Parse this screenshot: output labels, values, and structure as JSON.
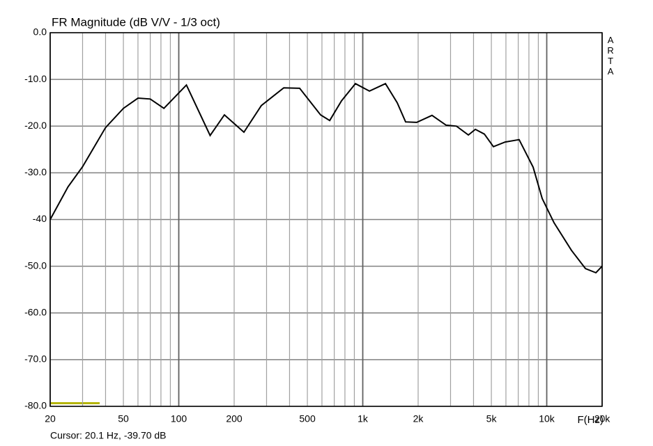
{
  "chart_data": {
    "type": "line",
    "title": "FR Magnitude (dB V/V - 1/3 oct)",
    "xlabel": "F(Hz)",
    "watermark": "ARTA",
    "cursor_text": "Cursor: 20.1 Hz, -39.70 dB",
    "log_x": true,
    "grid": true,
    "xlim": [
      20,
      20000
    ],
    "ylim": [
      -80,
      0
    ],
    "yticks": [
      {
        "value": 0,
        "label": "0.0"
      },
      {
        "value": -10,
        "label": "-10.0"
      },
      {
        "value": -20,
        "label": "-20.0"
      },
      {
        "value": -30,
        "label": "-30.0"
      },
      {
        "value": -40,
        "label": "-40"
      },
      {
        "value": -50,
        "label": "-50.0"
      },
      {
        "value": -60,
        "label": "-60.0"
      },
      {
        "value": -70,
        "label": "-70.0"
      },
      {
        "value": -80,
        "label": "-80.0"
      }
    ],
    "xticks": [
      20,
      {
        "value": 30,
        "label": null
      },
      {
        "value": 40,
        "label": null
      },
      50,
      {
        "value": 60,
        "label": null
      },
      {
        "value": 70,
        "label": null
      },
      {
        "value": 80,
        "label": null
      },
      {
        "value": 90,
        "label": null
      },
      100,
      200,
      {
        "value": 300,
        "label": null
      },
      {
        "value": 400,
        "label": null
      },
      500,
      {
        "value": 600,
        "label": null
      },
      {
        "value": 700,
        "label": null
      },
      {
        "value": 800,
        "label": null
      },
      {
        "value": 900,
        "label": null
      },
      {
        "value": 1000,
        "label": "1k"
      },
      {
        "value": 2000,
        "label": "2k"
      },
      {
        "value": 3000,
        "label": null
      },
      {
        "value": 4000,
        "label": null
      },
      {
        "value": 5000,
        "label": "5k"
      },
      {
        "value": 6000,
        "label": null
      },
      {
        "value": 7000,
        "label": null
      },
      {
        "value": 8000,
        "label": null
      },
      {
        "value": 9000,
        "label": null
      },
      {
        "value": 10000,
        "label": "10k"
      },
      {
        "value": 20000,
        "label": "20k"
      }
    ],
    "major_xticks": [
      20,
      100,
      1000,
      10000,
      20000
    ],
    "x": [
      20,
      25,
      30,
      40,
      50,
      60,
      70,
      83,
      110,
      148,
      177,
      226,
      281,
      372,
      454,
      590,
      661,
      766,
      912,
      1087,
      1328,
      1539,
      1710,
      1964,
      2380,
      2837,
      3231,
      3750,
      4091,
      4582,
      5130,
      5946,
      7077,
      8431,
      9443,
      10960,
      13620,
      16230,
      18500,
      20000
    ],
    "series": [
      {
        "color": "#000000",
        "values": [
          -40,
          -33,
          -28.7,
          -20.3,
          -16.2,
          -14,
          -14.2,
          -16.2,
          -11.2,
          -22,
          -17.6,
          -21.3,
          -15.6,
          -11.8,
          -11.9,
          -17.6,
          -18.8,
          -14.6,
          -10.9,
          -12.5,
          -10.9,
          -15,
          -19.1,
          -19.2,
          -17.7,
          -19.8,
          -20,
          -21.9,
          -20.7,
          -21.7,
          -24.4,
          -23.4,
          -22.9,
          -28.8,
          -35.5,
          -40.7,
          -46.6,
          -50.5,
          -51.4,
          -50
        ]
      }
    ]
  }
}
